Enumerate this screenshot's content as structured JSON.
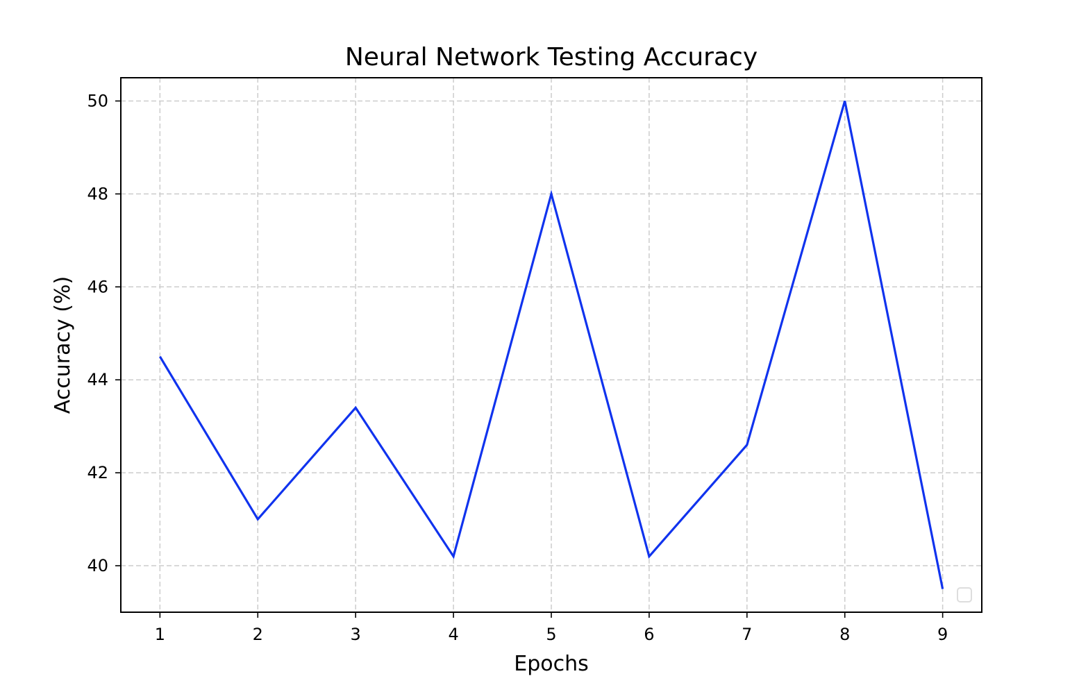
{
  "chart_data": {
    "type": "line",
    "title": "Neural Network Testing Accuracy",
    "xlabel": "Epochs",
    "ylabel": "Accuracy (%)",
    "x": [
      1,
      2,
      3,
      4,
      5,
      6,
      7,
      8,
      9
    ],
    "series": [
      {
        "values": [
          44.5,
          41.0,
          43.4,
          40.2,
          48.0,
          40.2,
          42.6,
          50.0,
          39.5
        ],
        "color": "#1033ee"
      }
    ],
    "xticks": [
      "1",
      "2",
      "3",
      "4",
      "5",
      "6",
      "7",
      "8",
      "9"
    ],
    "yticks": [
      "40",
      "42",
      "44",
      "46",
      "48",
      "50"
    ],
    "xlim": [
      0.6,
      9.4
    ],
    "ylim": [
      39.0,
      50.5
    ],
    "grid": true,
    "legend": {
      "placement": "lower-right",
      "entries": []
    }
  }
}
